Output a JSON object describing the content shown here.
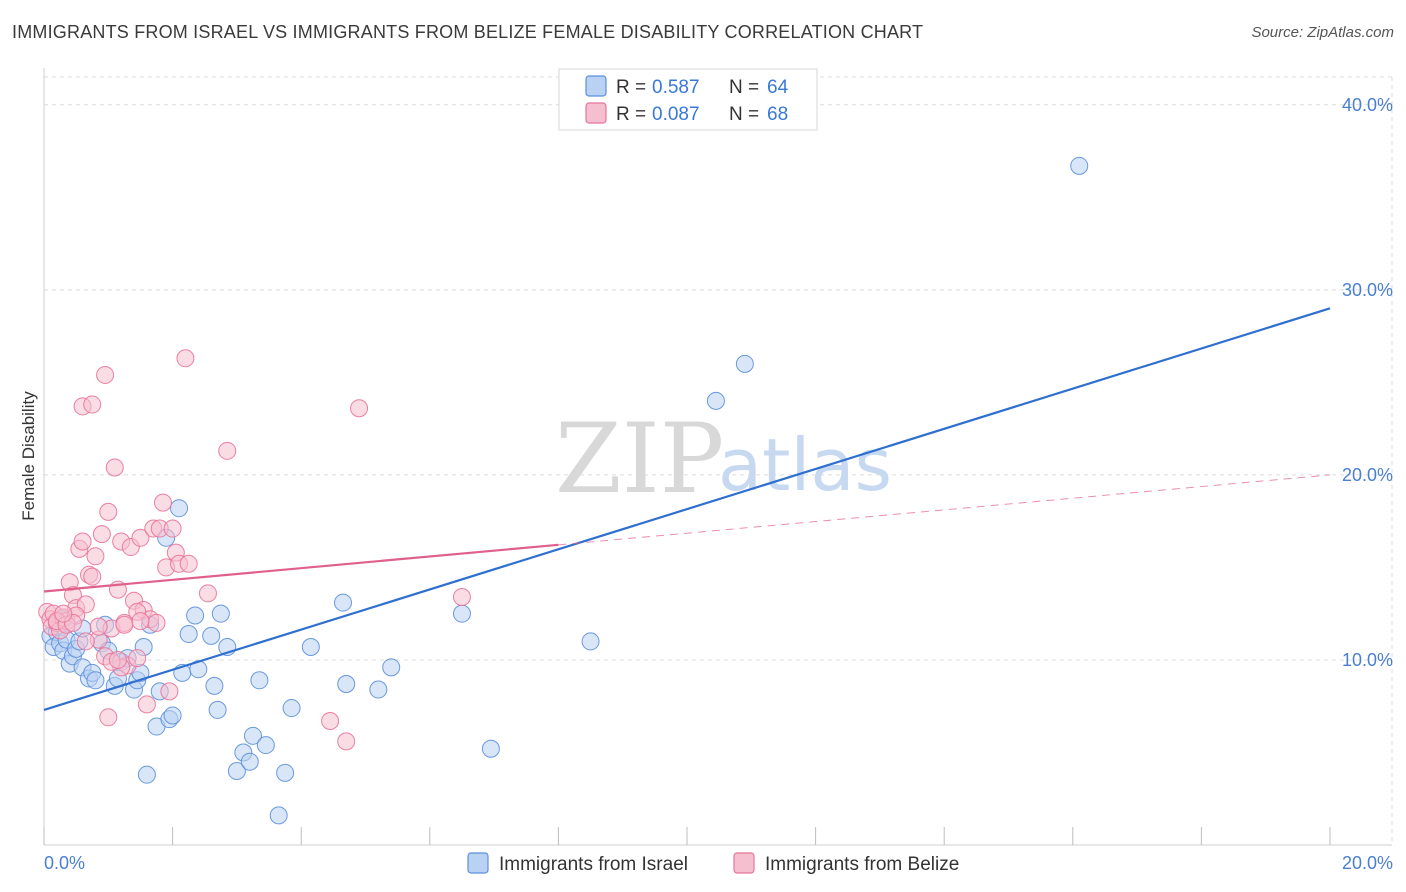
{
  "title": "IMMIGRANTS FROM ISRAEL VS IMMIGRANTS FROM BELIZE FEMALE DISABILITY CORRELATION CHART",
  "source": "Source: ZipAtlas.com",
  "watermark": {
    "zip": "ZIP",
    "atlas": "atlas"
  },
  "colors": {
    "israel": "#5b8fdc",
    "israel_fill": "#b9d1f3",
    "belize": "#e8739a",
    "belize_fill": "#f6bfd0",
    "israel_line": "#2f6fcf",
    "belize_line": "#e0608b",
    "axis_text": "#4a7fd0"
  },
  "legend": {
    "israel": {
      "r_label": "R =",
      "r_value": "0.587",
      "n_label": "N =",
      "n_value": "64"
    },
    "belize": {
      "r_label": "R =",
      "r_value": "0.087",
      "n_label": "N =",
      "n_value": "68"
    }
  },
  "chart_data": {
    "type": "scatter",
    "title": "IMMIGRANTS FROM ISRAEL VS IMMIGRANTS FROM BELIZE FEMALE DISABILITY CORRELATION CHART",
    "xlabel": "",
    "ylabel": "Female Disability",
    "xlim": [
      0,
      20
    ],
    "ylim": [
      0,
      41.5
    ],
    "x_ticks": [
      "0.0%",
      "20.0%"
    ],
    "y_ticks": [
      {
        "value": 10,
        "label": "10.0%"
      },
      {
        "value": 20,
        "label": "20.0%"
      },
      {
        "value": 30,
        "label": "30.0%"
      },
      {
        "value": 40,
        "label": "40.0%"
      }
    ],
    "grid": true,
    "series": [
      {
        "name": "Immigrants from Israel",
        "trend": {
          "x0": 0,
          "y0": 7.3,
          "x1": 20,
          "y1": 29.0,
          "dashed_from": null
        },
        "points": [
          [
            0.1,
            11.3
          ],
          [
            0.15,
            10.7
          ],
          [
            0.2,
            11.5
          ],
          [
            0.25,
            10.9
          ],
          [
            0.3,
            10.5
          ],
          [
            0.35,
            11.1
          ],
          [
            0.4,
            9.8
          ],
          [
            0.45,
            10.2
          ],
          [
            0.5,
            10.6
          ],
          [
            0.55,
            11.0
          ],
          [
            0.6,
            9.6
          ],
          [
            0.7,
            9.0
          ],
          [
            0.75,
            9.3
          ],
          [
            0.8,
            8.9
          ],
          [
            0.9,
            10.9
          ],
          [
            0.95,
            11.9
          ],
          [
            1.0,
            10.5
          ],
          [
            1.1,
            8.6
          ],
          [
            1.15,
            9.0
          ],
          [
            1.2,
            9.9
          ],
          [
            1.3,
            10.1
          ],
          [
            1.4,
            8.4
          ],
          [
            1.45,
            8.9
          ],
          [
            1.5,
            9.3
          ],
          [
            1.55,
            10.7
          ],
          [
            1.6,
            3.8
          ],
          [
            1.65,
            11.9
          ],
          [
            1.75,
            6.4
          ],
          [
            1.8,
            8.3
          ],
          [
            1.9,
            16.6
          ],
          [
            1.95,
            6.8
          ],
          [
            2.0,
            7.0
          ],
          [
            2.1,
            18.2
          ],
          [
            2.15,
            9.3
          ],
          [
            2.25,
            11.4
          ],
          [
            2.35,
            12.4
          ],
          [
            2.4,
            9.5
          ],
          [
            2.6,
            11.3
          ],
          [
            2.65,
            8.6
          ],
          [
            2.7,
            7.3
          ],
          [
            2.75,
            12.5
          ],
          [
            2.85,
            10.7
          ],
          [
            3.0,
            4.0
          ],
          [
            3.1,
            5.0
          ],
          [
            3.2,
            4.5
          ],
          [
            3.25,
            5.9
          ],
          [
            3.35,
            8.9
          ],
          [
            3.45,
            5.4
          ],
          [
            3.65,
            1.6
          ],
          [
            3.75,
            3.9
          ],
          [
            3.85,
            7.4
          ],
          [
            4.15,
            10.7
          ],
          [
            4.65,
            13.1
          ],
          [
            4.7,
            8.7
          ],
          [
            5.2,
            8.4
          ],
          [
            5.4,
            9.6
          ],
          [
            6.5,
            12.5
          ],
          [
            6.95,
            5.2
          ],
          [
            8.5,
            11.0
          ],
          [
            10.45,
            24.0
          ],
          [
            10.9,
            26.0
          ],
          [
            16.1,
            36.7
          ],
          [
            0.3,
            12.2
          ],
          [
            0.6,
            11.7
          ]
        ]
      },
      {
        "name": "Immigrants from Belize",
        "trend": {
          "x0": 0,
          "y0": 13.7,
          "x1": 20,
          "y1": 20.0,
          "dashed_from": 8.0
        },
        "points": [
          [
            0.05,
            12.6
          ],
          [
            0.1,
            12.2
          ],
          [
            0.12,
            11.8
          ],
          [
            0.15,
            12.5
          ],
          [
            0.2,
            12.0
          ],
          [
            0.25,
            11.6
          ],
          [
            0.3,
            12.3
          ],
          [
            0.35,
            12.1
          ],
          [
            0.4,
            14.2
          ],
          [
            0.45,
            13.5
          ],
          [
            0.5,
            12.8
          ],
          [
            0.55,
            16.0
          ],
          [
            0.6,
            16.4
          ],
          [
            0.65,
            13.0
          ],
          [
            0.7,
            14.6
          ],
          [
            0.75,
            14.5
          ],
          [
            0.8,
            15.6
          ],
          [
            0.85,
            11.1
          ],
          [
            0.9,
            16.8
          ],
          [
            0.95,
            10.2
          ],
          [
            1.0,
            18.0
          ],
          [
            1.05,
            11.7
          ],
          [
            1.1,
            20.4
          ],
          [
            1.15,
            13.8
          ],
          [
            1.2,
            16.4
          ],
          [
            1.25,
            12.0
          ],
          [
            1.3,
            9.7
          ],
          [
            1.35,
            16.1
          ],
          [
            1.4,
            13.2
          ],
          [
            1.45,
            10.1
          ],
          [
            1.5,
            16.6
          ],
          [
            1.55,
            12.7
          ],
          [
            1.6,
            7.6
          ],
          [
            1.65,
            12.2
          ],
          [
            1.7,
            17.1
          ],
          [
            1.75,
            12.0
          ],
          [
            1.8,
            17.1
          ],
          [
            1.85,
            18.5
          ],
          [
            1.9,
            15.0
          ],
          [
            1.95,
            8.3
          ],
          [
            2.0,
            17.1
          ],
          [
            2.05,
            15.8
          ],
          [
            2.1,
            15.2
          ],
          [
            2.2,
            26.3
          ],
          [
            2.25,
            15.2
          ],
          [
            0.6,
            23.7
          ],
          [
            0.75,
            23.8
          ],
          [
            0.95,
            25.4
          ],
          [
            2.85,
            21.3
          ],
          [
            2.55,
            13.6
          ],
          [
            4.45,
            6.7
          ],
          [
            4.7,
            5.6
          ],
          [
            4.9,
            23.6
          ],
          [
            6.5,
            13.4
          ],
          [
            1.0,
            6.9
          ],
          [
            0.2,
            12.1
          ],
          [
            0.5,
            12.4
          ],
          [
            0.65,
            11.0
          ],
          [
            0.85,
            11.8
          ],
          [
            1.2,
            9.6
          ],
          [
            1.25,
            11.9
          ],
          [
            1.45,
            12.6
          ],
          [
            0.35,
            11.9
          ],
          [
            0.45,
            12.0
          ],
          [
            1.05,
            9.9
          ],
          [
            1.15,
            10.0
          ],
          [
            0.3,
            12.5
          ],
          [
            1.5,
            12.1
          ]
        ]
      }
    ],
    "legend": [
      "Immigrants from Israel",
      "Immigrants from Belize"
    ]
  }
}
